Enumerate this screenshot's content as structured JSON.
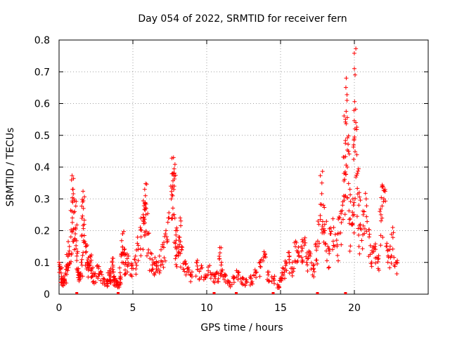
{
  "chart_data": {
    "type": "scatter",
    "title": "Day 054 of 2022, SRMTID for receiver fern",
    "xlabel": "GPS time / hours",
    "ylabel": "SRMTID / TECUs",
    "xlim": [
      0,
      25
    ],
    "ylim": [
      0,
      0.8
    ],
    "x_ticks": [
      "0",
      "5",
      "10",
      "15",
      "20"
    ],
    "y_ticks": [
      "0",
      "0.1",
      "0.2",
      "0.3",
      "0.4",
      "0.5",
      "0.6",
      "0.7",
      "0.8"
    ],
    "marker": "+",
    "color": "#ff0000",
    "series": [
      {
        "name": "SRMTID",
        "points": [
          [
            0.0,
            0.1
          ],
          [
            0.1,
            0.08
          ],
          [
            0.2,
            0.05
          ],
          [
            0.3,
            0.04
          ],
          [
            0.4,
            0.06
          ],
          [
            0.5,
            0.09
          ],
          [
            0.6,
            0.12
          ],
          [
            0.7,
            0.15
          ],
          [
            0.8,
            0.18
          ],
          [
            0.9,
            0.24
          ],
          [
            0.95,
            0.33
          ],
          [
            1.0,
            0.3
          ],
          [
            1.05,
            0.26
          ],
          [
            1.1,
            0.19
          ],
          [
            1.2,
            0.12
          ],
          [
            1.3,
            0.08
          ],
          [
            1.4,
            0.06
          ],
          [
            1.5,
            0.1
          ],
          [
            1.6,
            0.29
          ],
          [
            1.65,
            0.27
          ],
          [
            1.7,
            0.22
          ],
          [
            1.8,
            0.15
          ],
          [
            1.9,
            0.1
          ],
          [
            2.0,
            0.09
          ],
          [
            2.1,
            0.12
          ],
          [
            2.2,
            0.08
          ],
          [
            2.4,
            0.06
          ],
          [
            2.6,
            0.09
          ],
          [
            2.8,
            0.07
          ],
          [
            3.0,
            0.05
          ],
          [
            3.2,
            0.04
          ],
          [
            3.4,
            0.06
          ],
          [
            3.5,
            0.08
          ],
          [
            3.6,
            0.1
          ],
          [
            3.7,
            0.07
          ],
          [
            3.8,
            0.05
          ],
          [
            3.9,
            0.04
          ],
          [
            4.0,
            0.03
          ],
          [
            4.1,
            0.05
          ],
          [
            4.2,
            0.12
          ],
          [
            4.3,
            0.19
          ],
          [
            4.4,
            0.14
          ],
          [
            4.5,
            0.1
          ],
          [
            4.7,
            0.12
          ],
          [
            4.9,
            0.09
          ],
          [
            5.1,
            0.11
          ],
          [
            5.3,
            0.16
          ],
          [
            5.5,
            0.21
          ],
          [
            5.7,
            0.25
          ],
          [
            5.8,
            0.33
          ],
          [
            5.85,
            0.31
          ],
          [
            5.9,
            0.27
          ],
          [
            6.0,
            0.19
          ],
          [
            6.2,
            0.13
          ],
          [
            6.4,
            0.1
          ],
          [
            6.6,
            0.09
          ],
          [
            6.8,
            0.12
          ],
          [
            7.0,
            0.15
          ],
          [
            7.2,
            0.19
          ],
          [
            7.4,
            0.24
          ],
          [
            7.6,
            0.3
          ],
          [
            7.7,
            0.38
          ],
          [
            7.75,
            0.43
          ],
          [
            7.8,
            0.34
          ],
          [
            7.9,
            0.2
          ],
          [
            8.0,
            0.15
          ],
          [
            8.1,
            0.18
          ],
          [
            8.2,
            0.24
          ],
          [
            8.3,
            0.15
          ],
          [
            8.5,
            0.1
          ],
          [
            8.7,
            0.08
          ],
          [
            9.0,
            0.07
          ],
          [
            9.3,
            0.1
          ],
          [
            9.6,
            0.08
          ],
          [
            9.9,
            0.06
          ],
          [
            10.2,
            0.09
          ],
          [
            10.5,
            0.06
          ],
          [
            10.7,
            0.07
          ],
          [
            10.9,
            0.13
          ],
          [
            11.0,
            0.1
          ],
          [
            11.2,
            0.06
          ],
          [
            11.5,
            0.04
          ],
          [
            11.8,
            0.05
          ],
          [
            12.1,
            0.07
          ],
          [
            12.4,
            0.05
          ],
          [
            12.7,
            0.04
          ],
          [
            13.0,
            0.05
          ],
          [
            13.3,
            0.07
          ],
          [
            13.6,
            0.1
          ],
          [
            13.9,
            0.12
          ],
          [
            14.2,
            0.07
          ],
          [
            14.5,
            0.05
          ],
          [
            14.8,
            0.03
          ],
          [
            15.0,
            0.05
          ],
          [
            15.2,
            0.08
          ],
          [
            15.4,
            0.1
          ],
          [
            15.6,
            0.12
          ],
          [
            15.8,
            0.1
          ],
          [
            16.0,
            0.15
          ],
          [
            16.2,
            0.13
          ],
          [
            16.4,
            0.15
          ],
          [
            16.6,
            0.17
          ],
          [
            16.8,
            0.13
          ],
          [
            17.0,
            0.12
          ],
          [
            17.2,
            0.09
          ],
          [
            17.4,
            0.15
          ],
          [
            17.6,
            0.22
          ],
          [
            17.8,
            0.35
          ],
          [
            17.9,
            0.28
          ],
          [
            18.0,
            0.2
          ],
          [
            18.2,
            0.15
          ],
          [
            18.4,
            0.19
          ],
          [
            18.6,
            0.21
          ],
          [
            18.8,
            0.17
          ],
          [
            19.0,
            0.24
          ],
          [
            19.2,
            0.28
          ],
          [
            19.3,
            0.38
          ],
          [
            19.4,
            0.55
          ],
          [
            19.45,
            0.68
          ],
          [
            19.5,
            0.61
          ],
          [
            19.6,
            0.45
          ],
          [
            19.7,
            0.33
          ],
          [
            19.8,
            0.22
          ],
          [
            19.9,
            0.3
          ],
          [
            20.0,
            0.71
          ],
          [
            20.05,
            0.69
          ],
          [
            20.1,
            0.54
          ],
          [
            20.2,
            0.38
          ],
          [
            20.3,
            0.28
          ],
          [
            20.4,
            0.22
          ],
          [
            20.6,
            0.25
          ],
          [
            20.8,
            0.3
          ],
          [
            21.0,
            0.18
          ],
          [
            21.2,
            0.13
          ],
          [
            21.4,
            0.15
          ],
          [
            21.6,
            0.11
          ],
          [
            21.8,
            0.25
          ],
          [
            21.9,
            0.34
          ],
          [
            22.0,
            0.3
          ],
          [
            22.2,
            0.16
          ],
          [
            22.4,
            0.14
          ],
          [
            22.6,
            0.21
          ],
          [
            22.8,
            0.1
          ]
        ]
      }
    ],
    "zero_points_x": [
      1.2,
      4.0,
      10.5,
      12.0,
      14.5,
      17.5,
      19.4
    ]
  }
}
